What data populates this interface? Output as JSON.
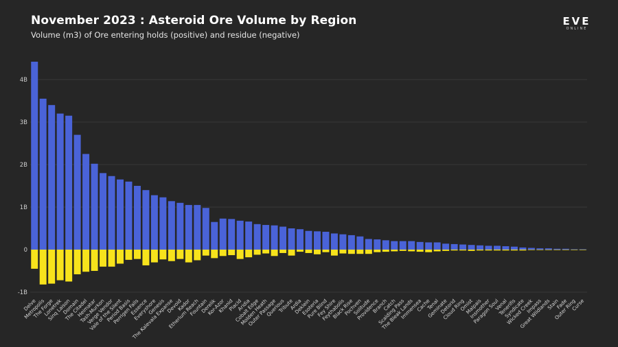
{
  "header": {
    "title": "November 2023 : Asteroid Ore Volume by Region",
    "subtitle": "Volume (m3) of Ore entering holds (positive) and residue (negative)"
  },
  "logo": {
    "main": "EVE",
    "sub": "ONLINE"
  },
  "colors": {
    "background": "#262626",
    "positive": "#4a63d8",
    "negative": "#f7e31c",
    "grid": "#383838"
  },
  "chart_data": {
    "type": "bar",
    "title": "November 2023 : Asteroid Ore Volume by Region",
    "subtitle": "Volume (m3) of Ore entering holds (positive) and residue (negative)",
    "xlabel": "",
    "ylabel": "",
    "ylim": [
      -1.1,
      4.5
    ],
    "yticks": [
      {
        "value": 4,
        "label": "4B"
      },
      {
        "value": 3,
        "label": "3B"
      },
      {
        "value": 2,
        "label": "2B"
      },
      {
        "value": 1,
        "label": "1B"
      },
      {
        "value": 0,
        "label": "0"
      },
      {
        "value": -1,
        "label": "-1B"
      }
    ],
    "grid": true,
    "categories": [
      "Delve",
      "Metropolis",
      "The Forge",
      "Lonetrek",
      "Sinq Laison",
      "Domain",
      "The Citadel",
      "Heimatar",
      "Tash-Murkon",
      "Verge Vendor",
      "Vale of the Silent",
      "Period Basis",
      "Perrigen Falls",
      "Essence",
      "Everyshore",
      "Genesis",
      "The Kalevala Expanse",
      "Devoid",
      "Kador",
      "Etherium Reach",
      "Fountain",
      "Derelik",
      "Kor-Azor",
      "Khanid",
      "Placid",
      "Aridia",
      "Cobalt Edge",
      "Molden Heath",
      "Outer Passage",
      "Querious",
      "Tribute",
      "Ardia",
      "Deklein",
      "Esoteria",
      "Pure Blind",
      "Fey Shire",
      "Feythabolis",
      "Black Rise",
      "Pochven",
      "Solitude",
      "Providence",
      "Branch",
      "Catch",
      "Scalding Pass",
      "The Bleak Lands",
      "Immensea",
      "Cache",
      "Tenal",
      "Geminate",
      "Detorid",
      "Cloud Ring",
      "Omist",
      "Malpais",
      "Insmother",
      "Paragon Soul",
      "Venal",
      "Tenerifis",
      "Syndicate",
      "Wicked Creek",
      "Impass",
      "Great Wildlands",
      "Stain",
      "Fade",
      "Outer Ring",
      "Curse"
    ],
    "series": [
      {
        "name": "Ore entering holds",
        "values": [
          4.42,
          3.55,
          3.4,
          3.2,
          3.15,
          2.7,
          2.25,
          2.02,
          1.8,
          1.73,
          1.65,
          1.6,
          1.5,
          1.4,
          1.28,
          1.23,
          1.14,
          1.1,
          1.05,
          1.05,
          0.98,
          0.65,
          0.73,
          0.72,
          0.68,
          0.66,
          0.6,
          0.58,
          0.57,
          0.54,
          0.5,
          0.48,
          0.44,
          0.43,
          0.42,
          0.38,
          0.36,
          0.34,
          0.31,
          0.25,
          0.24,
          0.22,
          0.2,
          0.2,
          0.2,
          0.18,
          0.17,
          0.17,
          0.14,
          0.13,
          0.12,
          0.11,
          0.1,
          0.09,
          0.09,
          0.08,
          0.07,
          0.05,
          0.04,
          0.03,
          0.03,
          0.02,
          0.02,
          0.01,
          0.01
        ]
      },
      {
        "name": "Residue",
        "values": [
          -0.45,
          -0.82,
          -0.8,
          -0.72,
          -0.75,
          -0.58,
          -0.52,
          -0.5,
          -0.4,
          -0.4,
          -0.33,
          -0.24,
          -0.22,
          -0.37,
          -0.3,
          -0.23,
          -0.27,
          -0.22,
          -0.3,
          -0.25,
          -0.14,
          -0.2,
          -0.15,
          -0.13,
          -0.22,
          -0.18,
          -0.12,
          -0.09,
          -0.15,
          -0.08,
          -0.14,
          -0.05,
          -0.08,
          -0.11,
          -0.06,
          -0.14,
          -0.09,
          -0.1,
          -0.1,
          -0.1,
          -0.06,
          -0.05,
          -0.04,
          -0.03,
          -0.04,
          -0.05,
          -0.06,
          -0.04,
          -0.03,
          -0.02,
          -0.02,
          -0.03,
          -0.02,
          -0.02,
          -0.02,
          -0.02,
          -0.02,
          -0.02,
          -0.01,
          -0.01,
          -0.01,
          -0.01,
          -0.01,
          -0.01,
          -0.01
        ]
      }
    ]
  }
}
